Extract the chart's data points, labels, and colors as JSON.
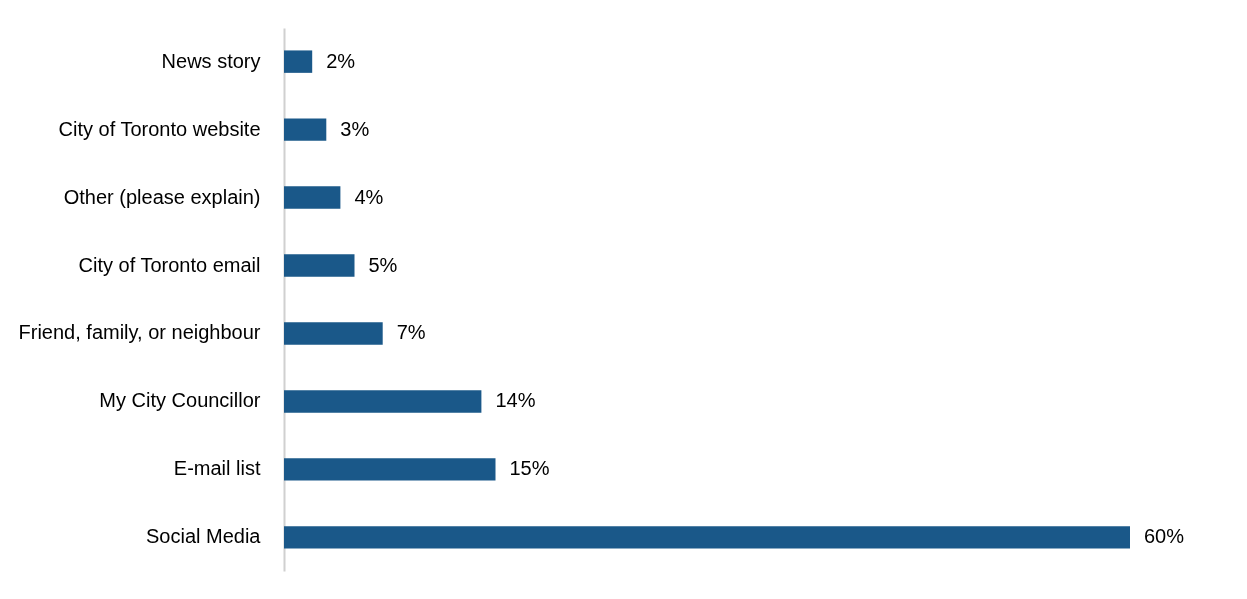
{
  "chart_data": {
    "type": "bar",
    "orientation": "horizontal",
    "categories": [
      "News story",
      "City of Toronto website",
      "Other (please explain)",
      "City of Toronto email",
      "Friend, family, or neighbour",
      "My City Councillor",
      "E-mail list",
      "Social Media"
    ],
    "values": [
      2,
      3,
      4,
      5,
      7,
      14,
      15,
      60
    ],
    "value_labels": [
      "2%",
      "3%",
      "4%",
      "5%",
      "7%",
      "14%",
      "15%",
      "60%"
    ],
    "color": "#1a5889"
  }
}
